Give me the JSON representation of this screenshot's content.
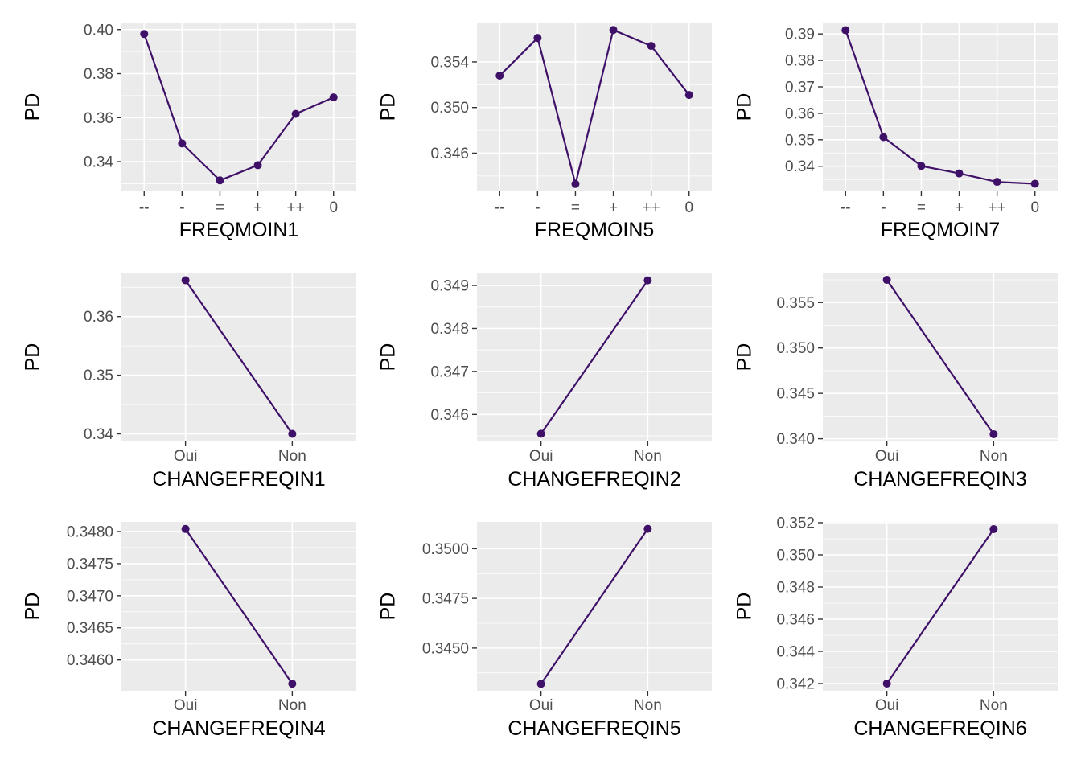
{
  "colors": {
    "panel_background": "#ebebeb",
    "grid_major": "#ffffff",
    "line": "#3f1068",
    "tick": "#333333"
  },
  "chart_data": [
    {
      "type": "line",
      "categories": [
        "--",
        "-",
        "=",
        "+",
        "++",
        "0"
      ],
      "values": [
        0.398,
        0.3483,
        0.3315,
        0.3384,
        0.3617,
        0.3692
      ],
      "xlabel": "FREQMOIN1",
      "ylabel": "PD",
      "ylim": [
        0.3265,
        0.4032
      ],
      "yticks": [
        0.34,
        0.36,
        0.38,
        0.4
      ],
      "ytick_labels": [
        "0.34",
        "0.36",
        "0.38",
        "0.40"
      ],
      "grid": true
    },
    {
      "type": "line",
      "categories": [
        "--",
        "-",
        "=",
        "+",
        "++",
        "0"
      ],
      "values": [
        0.3528,
        0.3561,
        0.3433,
        0.3568,
        0.3554,
        0.3511
      ],
      "xlabel": "FREQMOIN5",
      "ylabel": "PD",
      "ylim": [
        0.34265,
        0.35745
      ],
      "yticks": [
        0.346,
        0.35,
        0.354
      ],
      "ytick_labels": [
        "0.346",
        "0.350",
        "0.354"
      ],
      "grid": true
    },
    {
      "type": "line",
      "categories": [
        "--",
        "-",
        "=",
        "+",
        "++",
        "0"
      ],
      "values": [
        0.3914,
        0.351,
        0.3401,
        0.3373,
        0.3341,
        0.3334
      ],
      "xlabel": "FREQMOIN7",
      "ylabel": "PD",
      "ylim": [
        0.3305,
        0.3943
      ],
      "yticks": [
        0.34,
        0.35,
        0.36,
        0.37,
        0.38,
        0.39
      ],
      "ytick_labels": [
        "0.34",
        "0.35",
        "0.36",
        "0.37",
        "0.38",
        "0.39"
      ],
      "grid": true
    },
    {
      "type": "line",
      "categories": [
        "Oui",
        "Non"
      ],
      "values": [
        0.3662,
        0.34
      ],
      "xlabel": "CHANGEFREQIN1",
      "ylabel": "PD",
      "ylim": [
        0.3387,
        0.3675
      ],
      "yticks": [
        0.34,
        0.35,
        0.36
      ],
      "ytick_labels": [
        "0.34",
        "0.35",
        "0.36"
      ],
      "grid": true
    },
    {
      "type": "line",
      "categories": [
        "Oui",
        "Non"
      ],
      "values": [
        0.34555,
        0.34912
      ],
      "xlabel": "CHANGEFREQIN2",
      "ylabel": "PD",
      "ylim": [
        0.34537,
        0.3493
      ],
      "yticks": [
        0.346,
        0.347,
        0.348,
        0.349
      ],
      "ytick_labels": [
        "0.346",
        "0.347",
        "0.348",
        "0.349"
      ],
      "grid": true
    },
    {
      "type": "line",
      "categories": [
        "Oui",
        "Non"
      ],
      "values": [
        0.3575,
        0.3405
      ],
      "xlabel": "CHANGEFREQIN3",
      "ylabel": "PD",
      "ylim": [
        0.3397,
        0.3583
      ],
      "yticks": [
        0.34,
        0.345,
        0.35,
        0.355
      ],
      "ytick_labels": [
        "0.340",
        "0.345",
        "0.350",
        "0.355"
      ],
      "grid": true
    },
    {
      "type": "line",
      "categories": [
        "Oui",
        "Non"
      ],
      "values": [
        0.34804,
        0.34563
      ],
      "xlabel": "CHANGEFREQIN4",
      "ylabel": "PD",
      "ylim": [
        0.34552,
        0.34815
      ],
      "yticks": [
        0.346,
        0.3465,
        0.347,
        0.3475,
        0.348
      ],
      "ytick_labels": [
        "0.3460",
        "0.3465",
        "0.3470",
        "0.3475",
        "0.3480"
      ],
      "grid": true
    },
    {
      "type": "line",
      "categories": [
        "Oui",
        "Non"
      ],
      "values": [
        0.3432,
        0.351
      ],
      "xlabel": "CHANGEFREQIN5",
      "ylabel": "PD",
      "ylim": [
        0.34285,
        0.35135
      ],
      "yticks": [
        0.345,
        0.3475,
        0.35
      ],
      "ytick_labels": [
        "0.3450",
        "0.3475",
        "0.3500"
      ],
      "grid": true
    },
    {
      "type": "line",
      "categories": [
        "Oui",
        "Non"
      ],
      "values": [
        0.342,
        0.3516
      ],
      "xlabel": "CHANGEFREQIN6",
      "ylabel": "PD",
      "ylim": [
        0.34155,
        0.35205
      ],
      "yticks": [
        0.342,
        0.344,
        0.346,
        0.348,
        0.35,
        0.352
      ],
      "ytick_labels": [
        "0.342",
        "0.344",
        "0.346",
        "0.348",
        "0.350",
        "0.352"
      ],
      "grid": true
    }
  ]
}
